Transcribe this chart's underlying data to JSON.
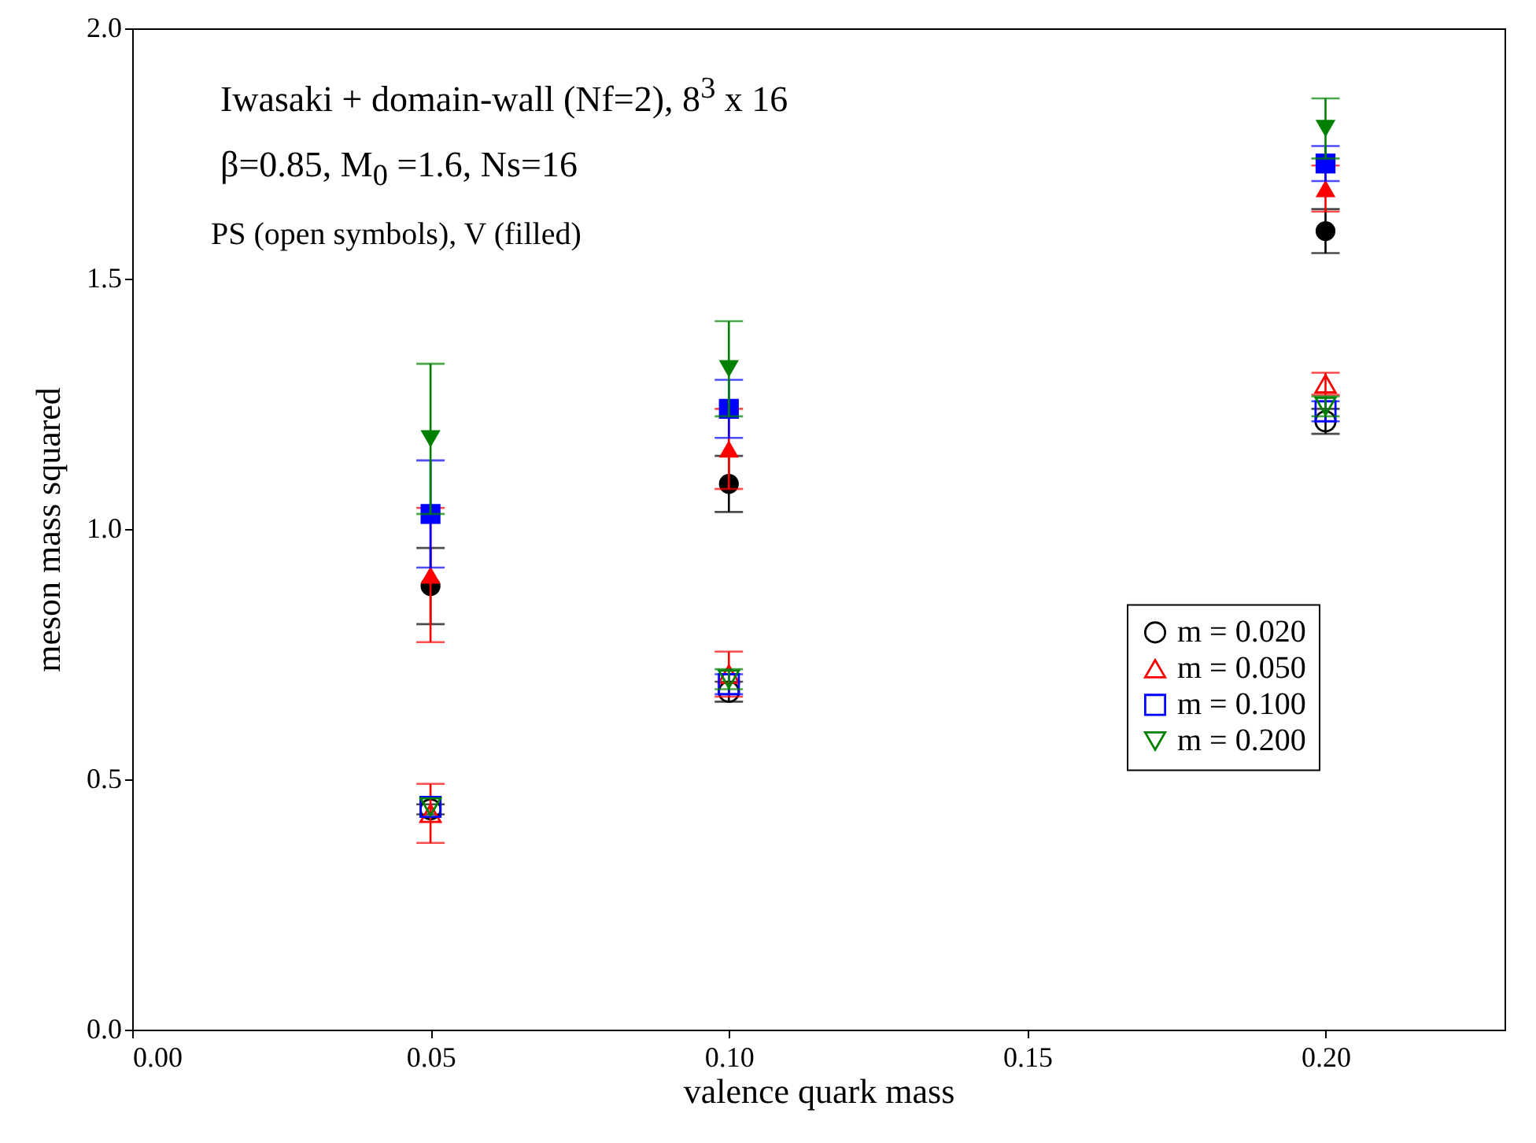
{
  "chart_data": {
    "type": "scatter",
    "xlabel": "valence quark mass",
    "ylabel": "meson mass squared",
    "annotations": [
      "Iwasaki + domain-wall (Nf=2), 8$^{3}$ x 16",
      "β=0.85, M$_{0}$ =1.6, Ns=16",
      "PS (open symbols), V (filled)"
    ],
    "x": [
      0.05,
      0.1,
      0.2
    ],
    "xlim": [
      0,
      0.23
    ],
    "xticks": [
      {
        "value": 0,
        "label": "0.00"
      },
      {
        "value": 0.05,
        "label": "0.05"
      },
      {
        "value": 0.1,
        "label": "0.10"
      },
      {
        "value": 0.15,
        "label": "0.15"
      },
      {
        "value": 0.2,
        "label": "0.20"
      }
    ],
    "ylim": [
      0,
      2
    ],
    "yticks": [
      {
        "value": 0,
        "label": "0.0"
      },
      {
        "value": 0.5,
        "label": "0.5"
      },
      {
        "value": 1,
        "label": "1.0"
      },
      {
        "value": 1.5,
        "label": "1.5"
      },
      {
        "value": 2,
        "label": "2.0"
      }
    ],
    "grid": false,
    "legend": "right",
    "series": [
      {
        "name": "m = 0.020",
        "color": "#000000",
        "marker": "circle",
        "values": [
          0.44,
          0.675,
          1.215
        ],
        "errors": [
          0.01,
          0.02,
          0.025
        ]
      },
      {
        "name": "m = 0.050",
        "color": "#ff0000",
        "marker": "triangle",
        "values": [
          0.432,
          0.71,
          1.29
        ],
        "errors": [
          0.059,
          0.045,
          0.022
        ]
      },
      {
        "name": "m = 0.100",
        "color": "#0000ff",
        "marker": "square",
        "values": [
          0.445,
          0.69,
          1.235
        ],
        "errors": [
          null,
          0.02,
          0.02
        ]
      },
      {
        "name": "m = 0.200",
        "color": "#008000",
        "marker": "triangle-down",
        "values": [
          0.445,
          0.7,
          1.245
        ],
        "errors": [
          null,
          0.02,
          0.02
        ]
      },
      {
        "color": "#000000",
        "marker": "circle",
        "values": [
          0.886,
          1.09,
          1.595
        ],
        "errors": [
          0.076,
          0.056,
          0.044
        ]
      },
      {
        "color": "#ff0000",
        "marker": "triangle",
        "values": [
          0.908,
          1.16,
          1.68
        ],
        "errors": [
          0.134,
          0.08,
          0.046
        ]
      },
      {
        "color": "#0000ff",
        "marker": "square",
        "values": [
          1.03,
          1.24,
          1.73
        ],
        "errors": [
          0.107,
          0.058,
          0.035
        ]
      },
      {
        "color": "#008000",
        "marker": "triangle-down",
        "values": [
          1.18,
          1.32,
          1.8
        ],
        "errors": [
          0.15,
          0.095,
          0.06
        ]
      }
    ]
  }
}
